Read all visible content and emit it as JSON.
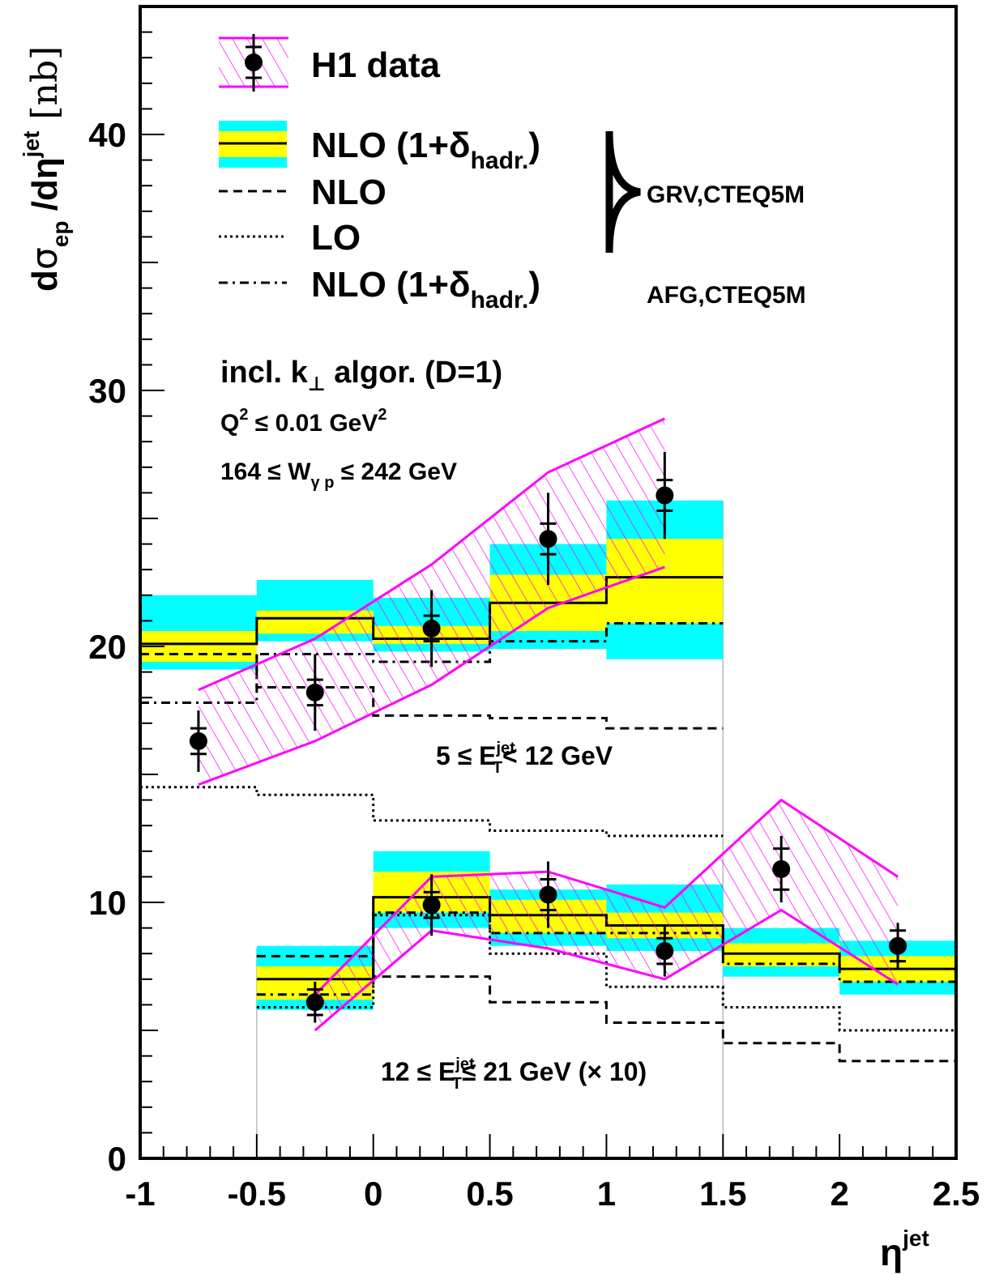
{
  "chart_data": {
    "type": "line",
    "x_axis": {
      "label": "η",
      "label_sup": "jet",
      "range": [
        -1,
        2.5
      ],
      "ticks": [
        -1,
        -0.5,
        0,
        0.5,
        1,
        1.5,
        2,
        2.5
      ],
      "tick_labels": [
        "-1",
        "-0.5",
        "0",
        "0.5",
        "1",
        "1.5",
        "2",
        "2.5"
      ]
    },
    "y_axis": {
      "label_parts": {
        "d": "d",
        "sigma": "σ",
        "sub": "ep",
        "mid": " /dη",
        "sup": "jet",
        "unit": "[nb]"
      },
      "range": [
        0,
        45
      ],
      "ticks": [
        0,
        10,
        20,
        30,
        40
      ],
      "tick_labels": [
        "0",
        "10",
        "20",
        "30",
        "40"
      ]
    },
    "legend": {
      "h1": "H1 data",
      "nlo_hadr_1": {
        "main": "NLO (1+δ",
        "sub": "hadr.",
        "close": ")"
      },
      "nlo": "NLO",
      "lo": "LO",
      "nlo_hadr_2": {
        "main": "NLO (1+δ",
        "sub": "hadr.",
        "close": ")"
      },
      "pdf_grv": "GRV,CTEQ5M",
      "pdf_afg": "AFG,CTEQ5M"
    },
    "annotations": {
      "algorithm": {
        "pre": "incl. k",
        "sub": "⊥",
        "post": " algor. (D=1)"
      },
      "q2": {
        "a": "Q",
        "sup1": "2",
        "b": " ≤ 0.01 GeV",
        "sup2": "2"
      },
      "w": {
        "a": "164 ≤ W",
        "sub": "γ p",
        "b": " ≤ 242 GeV"
      },
      "low_et": {
        "a": "5 ≤ E",
        "sup": "jet",
        "sub": "T",
        "b": "< 12 GeV"
      },
      "high_et": {
        "a": "12 ≤ E",
        "sup": "jet",
        "sub": "T",
        "b": "≤ 21 GeV (× 10)"
      }
    },
    "colors": {
      "data_band": "#ff00ff",
      "outer_band": "#00ffff",
      "inner_band": "#ffff00",
      "lines": "#000000"
    },
    "low_et": {
      "bin_edges": [
        -1,
        -0.5,
        0,
        0.5,
        1,
        1.5
      ],
      "bands": [
        {
          "center": 20.1,
          "outer": [
            19.1,
            22.0
          ],
          "inner": [
            19.4,
            20.6
          ]
        },
        {
          "center": 21.1,
          "outer": [
            20.2,
            22.6
          ],
          "inner": [
            20.5,
            21.4
          ]
        },
        {
          "center": 20.3,
          "outer": [
            19.8,
            21.9
          ],
          "inner": [
            20.1,
            20.8
          ]
        },
        {
          "center": 21.7,
          "outer": [
            19.9,
            24.0
          ],
          "inner": [
            20.6,
            22.8
          ]
        },
        {
          "center": 22.7,
          "outer": [
            19.5,
            25.7
          ],
          "inner": [
            20.9,
            24.2
          ]
        }
      ],
      "nlo": [
        19.7,
        18.4,
        17.3,
        17.2,
        16.8
      ],
      "lo": [
        14.5,
        14.2,
        13.2,
        12.8,
        12.6
      ],
      "nlo_afg": [
        17.8,
        19.7,
        19.4,
        20.2,
        20.9
      ],
      "data": {
        "x": [
          -0.75,
          -0.25,
          0.25,
          0.75,
          1.25
        ],
        "y": [
          16.3,
          18.2,
          20.7,
          24.2,
          25.9
        ],
        "stat": [
          0.5,
          0.5,
          0.5,
          0.6,
          0.6
        ],
        "tot": [
          1.2,
          1.5,
          1.5,
          1.8,
          1.7
        ],
        "band_lo": [
          14.6,
          16.3,
          18.5,
          21.5,
          23.1
        ],
        "band_hi": [
          18.3,
          20.3,
          23.2,
          26.8,
          28.9
        ]
      }
    },
    "high_et": {
      "bin_edges": [
        -0.5,
        0,
        0.5,
        1,
        1.5,
        2,
        2.5
      ],
      "bands": [
        {
          "center": 7.0,
          "outer": [
            5.8,
            8.3
          ],
          "inner": [
            6.2,
            7.5
          ]
        },
        {
          "center": 10.2,
          "outer": [
            9.0,
            12.0
          ],
          "inner": [
            9.6,
            11.2
          ]
        },
        {
          "center": 9.5,
          "outer": [
            8.3,
            10.5
          ],
          "inner": [
            8.8,
            10.1
          ]
        },
        {
          "center": 9.1,
          "outer": [
            8.1,
            10.7
          ],
          "inner": [
            8.6,
            9.6
          ]
        },
        {
          "center": 8.0,
          "outer": [
            7.1,
            9.0
          ],
          "inner": [
            7.5,
            8.4
          ]
        },
        {
          "center": 7.4,
          "outer": [
            6.4,
            8.5
          ],
          "inner": [
            6.9,
            7.9
          ]
        }
      ],
      "nlo": [
        7.9,
        7.1,
        6.1,
        5.3,
        4.5,
        3.8
      ],
      "lo": [
        5.9,
        9.5,
        8.0,
        6.7,
        5.9,
        5.0
      ],
      "nlo_afg": [
        6.4,
        9.6,
        8.8,
        8.8,
        7.6,
        6.9
      ],
      "data": {
        "x": [
          -0.25,
          0.25,
          0.75,
          1.25,
          1.75,
          2.25
        ],
        "y": [
          6.1,
          9.9,
          10.3,
          8.1,
          11.3,
          8.3
        ],
        "stat": [
          0.5,
          0.5,
          0.6,
          0.5,
          0.8,
          0.6
        ],
        "tot": [
          0.8,
          1.2,
          1.3,
          1.0,
          1.3,
          0.9
        ],
        "band_lo": [
          5.0,
          8.9,
          8.2,
          7.0,
          9.7,
          6.8
        ],
        "band_hi": [
          6.4,
          11.0,
          11.2,
          9.8,
          14.0,
          11.0
        ]
      }
    }
  }
}
